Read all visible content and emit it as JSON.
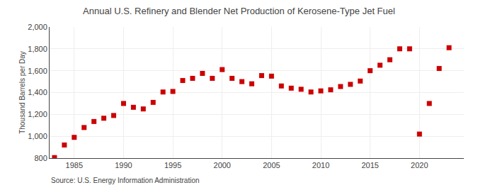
{
  "chart_data": {
    "type": "scatter",
    "title": "Annual U.S. Refinery and Blender Net Production of Kerosene-Type Jet Fuel",
    "ylabel": "Thousand Barrels per Day",
    "annotations": [
      "Source: U.S. Energy Information Administration"
    ],
    "color": "#cc0000",
    "marker": "square",
    "grid": true,
    "x": [
      1983,
      1984,
      1985,
      1986,
      1987,
      1988,
      1989,
      1990,
      1991,
      1992,
      1993,
      1994,
      1995,
      1996,
      1997,
      1998,
      1999,
      2000,
      2001,
      2002,
      2003,
      2004,
      2005,
      2006,
      2007,
      2008,
      2009,
      2010,
      2011,
      2012,
      2013,
      2014,
      2015,
      2016,
      2017,
      2018,
      2019,
      2020,
      2021,
      2022,
      2023
    ],
    "values": [
      805,
      920,
      990,
      1080,
      1135,
      1165,
      1190,
      1300,
      1265,
      1250,
      1310,
      1405,
      1410,
      1510,
      1530,
      1575,
      1530,
      1610,
      1530,
      1500,
      1480,
      1555,
      1550,
      1460,
      1440,
      1430,
      1405,
      1415,
      1425,
      1455,
      1475,
      1505,
      1600,
      1650,
      1700,
      1800,
      1800,
      1020,
      1300,
      1620,
      1810
    ],
    "xlim": [
      1982.5,
      2024.5
    ],
    "xticks": [
      1985,
      1990,
      1995,
      2000,
      2005,
      2010,
      2015,
      2020
    ],
    "ylim": [
      800,
      2000
    ],
    "yticks": [
      800,
      {
        "value": 1000,
        "label": "1,000"
      },
      {
        "value": 1200,
        "label": "1,200"
      },
      {
        "value": 1400,
        "label": "1,400"
      },
      {
        "value": 1600,
        "label": "1,600"
      },
      {
        "value": 1800,
        "label": "1,800"
      },
      {
        "value": 2000,
        "label": "2,000"
      }
    ]
  }
}
